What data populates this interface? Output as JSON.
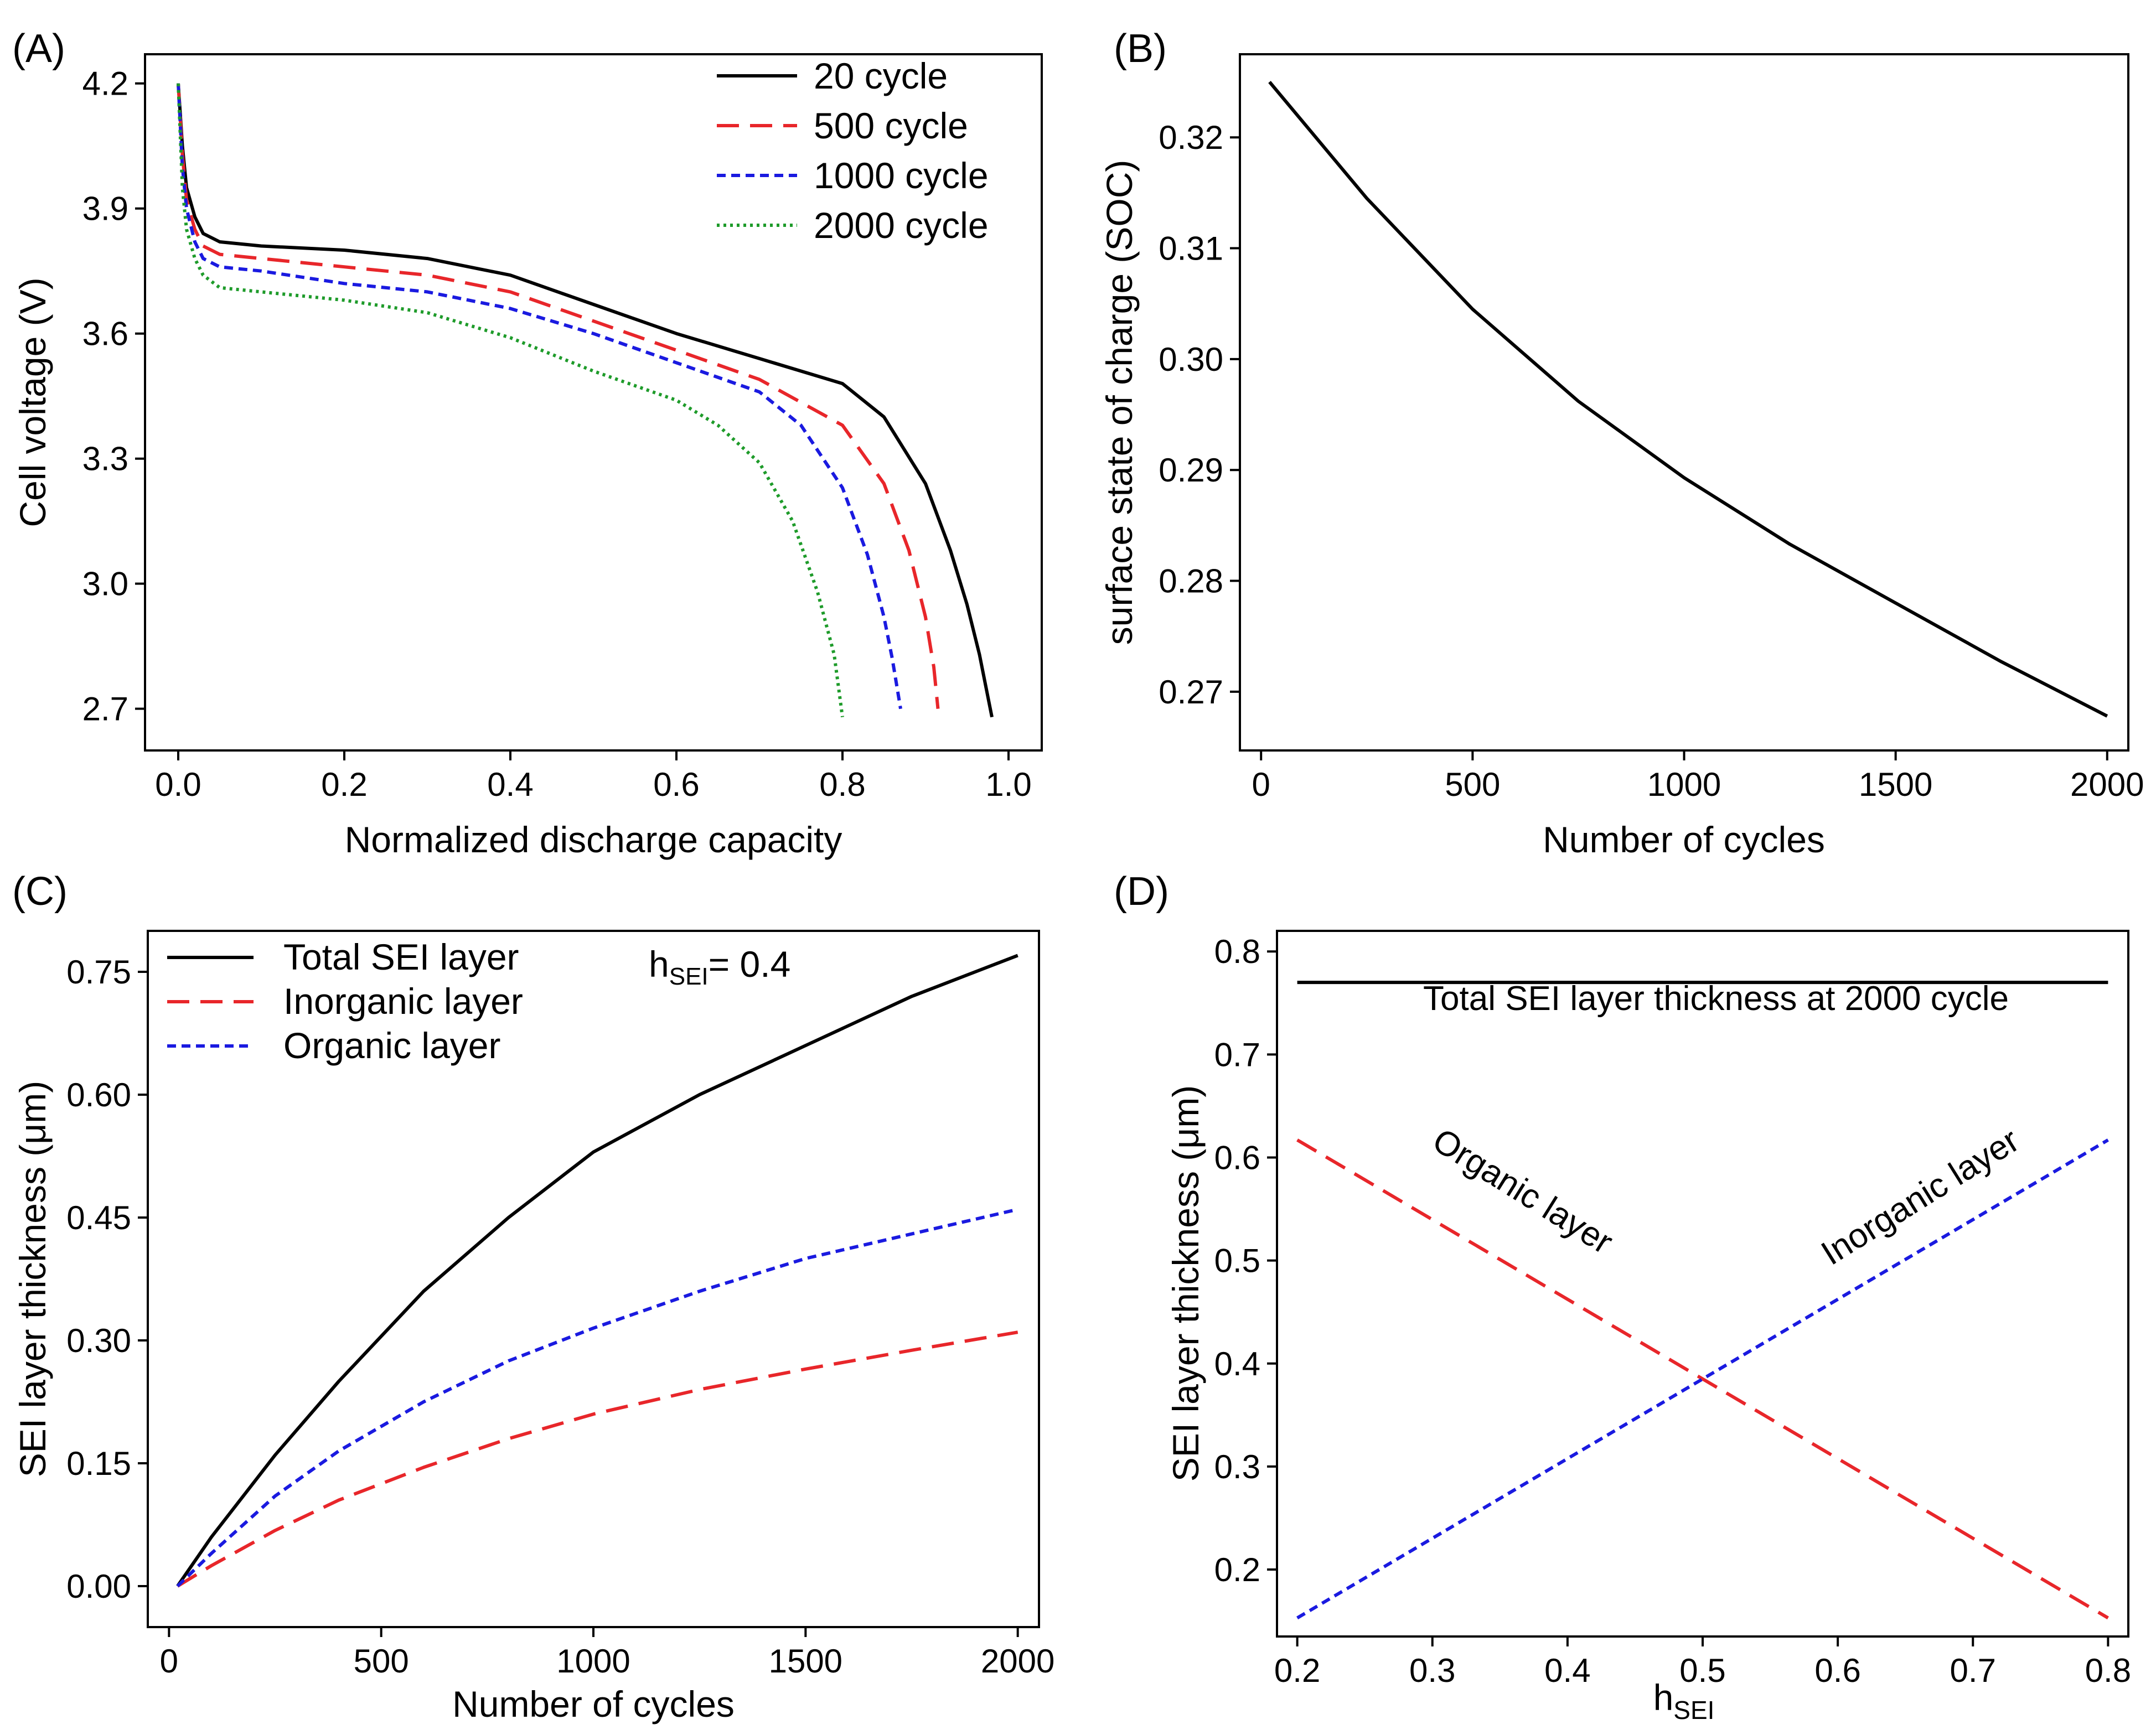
{
  "chart_data": [
    {
      "id": "A",
      "panel_label": "(A)",
      "type": "line",
      "xlabel": "Normalized discharge capacity",
      "ylabel": "Cell voltage (V)",
      "xlim": [
        -0.04,
        1.04
      ],
      "ylim": [
        2.6,
        4.27
      ],
      "xticks": [
        0.0,
        0.2,
        0.4,
        0.6,
        0.8,
        1.0
      ],
      "xtick_labels": [
        "0.0",
        "0.2",
        "0.4",
        "0.6",
        "0.8",
        "1.0"
      ],
      "yticks": [
        2.7,
        3.0,
        3.3,
        3.6,
        3.9,
        4.2
      ],
      "ytick_labels": [
        "2.7",
        "3.0",
        "3.3",
        "3.6",
        "3.9",
        "4.2"
      ],
      "legend_position": "top-right",
      "series": [
        {
          "name": "20 cycle",
          "color": "#000000",
          "dash": "solid",
          "x": [
            0.0,
            0.005,
            0.01,
            0.02,
            0.03,
            0.05,
            0.1,
            0.2,
            0.3,
            0.4,
            0.5,
            0.6,
            0.7,
            0.8,
            0.85,
            0.9,
            0.93,
            0.95,
            0.965,
            0.975,
            0.98
          ],
          "y": [
            4.2,
            4.05,
            3.95,
            3.88,
            3.84,
            3.82,
            3.81,
            3.8,
            3.78,
            3.74,
            3.67,
            3.6,
            3.54,
            3.48,
            3.4,
            3.24,
            3.08,
            2.95,
            2.83,
            2.73,
            2.68
          ]
        },
        {
          "name": "500 cycle",
          "color": "#e8262a",
          "dash": "long-dash",
          "x": [
            0.0,
            0.005,
            0.01,
            0.02,
            0.03,
            0.05,
            0.1,
            0.2,
            0.3,
            0.4,
            0.5,
            0.6,
            0.7,
            0.8,
            0.85,
            0.88,
            0.9,
            0.91,
            0.915
          ],
          "y": [
            4.2,
            4.03,
            3.92,
            3.85,
            3.81,
            3.79,
            3.78,
            3.76,
            3.74,
            3.7,
            3.63,
            3.56,
            3.49,
            3.38,
            3.24,
            3.08,
            2.92,
            2.8,
            2.7
          ]
        },
        {
          "name": "1000 cycle",
          "color": "#1a1ae0",
          "dash": "short-dash",
          "x": [
            0.0,
            0.005,
            0.01,
            0.02,
            0.03,
            0.05,
            0.1,
            0.2,
            0.3,
            0.4,
            0.5,
            0.6,
            0.7,
            0.75,
            0.8,
            0.83,
            0.85,
            0.86,
            0.87
          ],
          "y": [
            4.2,
            4.0,
            3.9,
            3.82,
            3.78,
            3.76,
            3.75,
            3.72,
            3.7,
            3.66,
            3.6,
            3.53,
            3.46,
            3.38,
            3.23,
            3.07,
            2.92,
            2.82,
            2.7
          ]
        },
        {
          "name": "2000 cycle",
          "color": "#1e9b2a",
          "dash": "dot",
          "x": [
            0.0,
            0.005,
            0.01,
            0.02,
            0.03,
            0.05,
            0.1,
            0.2,
            0.3,
            0.4,
            0.5,
            0.6,
            0.65,
            0.7,
            0.74,
            0.77,
            0.79,
            0.8
          ],
          "y": [
            4.2,
            3.95,
            3.85,
            3.78,
            3.74,
            3.71,
            3.7,
            3.68,
            3.65,
            3.59,
            3.51,
            3.44,
            3.38,
            3.29,
            3.15,
            2.98,
            2.83,
            2.68
          ]
        }
      ]
    },
    {
      "id": "B",
      "panel_label": "(B)",
      "type": "line",
      "xlabel": "Number of cycles",
      "ylabel": "surface state of charge (SOC)",
      "xlim": [
        -50,
        2050
      ],
      "ylim": [
        0.2647,
        0.3275
      ],
      "xticks": [
        0,
        500,
        1000,
        1500,
        2000
      ],
      "xtick_labels": [
        "0",
        "500",
        "1000",
        "1500",
        "2000"
      ],
      "yticks": [
        0.27,
        0.28,
        0.29,
        0.3,
        0.31,
        0.32
      ],
      "ytick_labels": [
        "0.27",
        "0.28",
        "0.29",
        "0.30",
        "0.31",
        "0.32"
      ],
      "series": [
        {
          "name": "SOC",
          "color": "#000000",
          "dash": "solid",
          "x": [
            20,
            250,
            500,
            750,
            1000,
            1250,
            1500,
            1750,
            2000
          ],
          "y": [
            0.325,
            0.3145,
            0.3045,
            0.2962,
            0.2893,
            0.2833,
            0.278,
            0.2727,
            0.2678
          ]
        }
      ]
    },
    {
      "id": "C",
      "panel_label": "(C)",
      "type": "line",
      "xlabel": "Number of cycles",
      "ylabel": "SEI layer thickness (μm)",
      "xlim": [
        -50,
        2050
      ],
      "ylim": [
        -0.05,
        0.8
      ],
      "xticks": [
        0,
        500,
        1000,
        1500,
        2000
      ],
      "xtick_labels": [
        "0",
        "500",
        "1000",
        "1500",
        "2000"
      ],
      "yticks": [
        0.0,
        0.15,
        0.3,
        0.45,
        0.6,
        0.75
      ],
      "ytick_labels": [
        "0.00",
        "0.15",
        "0.30",
        "0.45",
        "0.60",
        "0.75"
      ],
      "legend_position": "top-left",
      "annotation": {
        "main": "h",
        "sub": "SEI",
        "tail": "= 0.4"
      },
      "series": [
        {
          "name": "Total SEI layer",
          "color": "#000000",
          "dash": "solid",
          "x": [
            20,
            100,
            250,
            400,
            600,
            800,
            1000,
            1250,
            1500,
            1750,
            2000
          ],
          "y": [
            0.0,
            0.06,
            0.16,
            0.25,
            0.36,
            0.45,
            0.53,
            0.6,
            0.66,
            0.72,
            0.77
          ]
        },
        {
          "name": "Inorganic layer",
          "color": "#e8262a",
          "dash": "long-dash",
          "x": [
            20,
            100,
            250,
            400,
            600,
            800,
            1000,
            1250,
            1500,
            1750,
            2000
          ],
          "y": [
            0.0,
            0.025,
            0.068,
            0.105,
            0.145,
            0.18,
            0.21,
            0.24,
            0.265,
            0.288,
            0.31
          ]
        },
        {
          "name": "Organic layer",
          "color": "#1a1ae0",
          "dash": "short-dash",
          "x": [
            20,
            100,
            250,
            400,
            600,
            800,
            1000,
            1250,
            1500,
            1750,
            2000
          ],
          "y": [
            0.0,
            0.04,
            0.11,
            0.165,
            0.225,
            0.275,
            0.315,
            0.36,
            0.4,
            0.43,
            0.46
          ]
        }
      ]
    },
    {
      "id": "D",
      "panel_label": "(D)",
      "type": "line",
      "xlabel": {
        "main": "h",
        "sub": "SEI"
      },
      "ylabel": "SEI layer thickness (μm)",
      "xlim": [
        0.185,
        0.815
      ],
      "ylim": [
        0.135,
        0.82
      ],
      "xticks": [
        0.2,
        0.3,
        0.4,
        0.5,
        0.6,
        0.7,
        0.8
      ],
      "xtick_labels": [
        "0.2",
        "0.3",
        "0.4",
        "0.5",
        "0.6",
        "0.7",
        "0.8"
      ],
      "yticks": [
        0.2,
        0.3,
        0.4,
        0.5,
        0.6,
        0.7,
        0.8
      ],
      "ytick_labels": [
        "0.2",
        "0.3",
        "0.4",
        "0.5",
        "0.6",
        "0.7",
        "0.8"
      ],
      "annotations": [
        "Total SEI layer thickness at 2000 cycle",
        "Organic layer",
        "Inorganic layer"
      ],
      "series": [
        {
          "name": "Total SEI layer",
          "color": "#000000",
          "dash": "solid",
          "x": [
            0.2,
            0.8
          ],
          "y": [
            0.77,
            0.77
          ]
        },
        {
          "name": "Organic layer",
          "color": "#e8262a",
          "dash": "long-dash",
          "x": [
            0.2,
            0.8
          ],
          "y": [
            0.617,
            0.153
          ]
        },
        {
          "name": "Inorganic layer",
          "color": "#1a1ae0",
          "dash": "short-dash",
          "x": [
            0.2,
            0.8
          ],
          "y": [
            0.153,
            0.617
          ]
        }
      ]
    }
  ]
}
